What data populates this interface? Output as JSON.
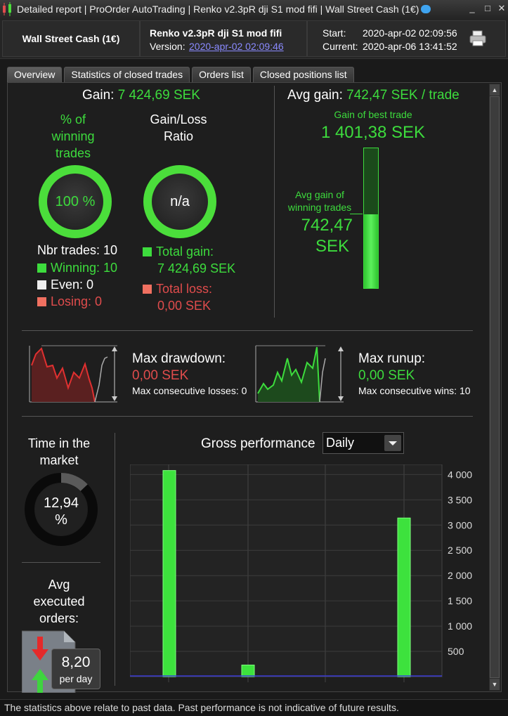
{
  "titlebar": {
    "title": "Detailed report | ProOrder AutoTrading | Renko v2.3pR dji S1 mod fifi | Wall Street Cash (1€)",
    "minimize": "_",
    "maximize": "□",
    "close": "✕"
  },
  "header": {
    "instrument": "Wall Street Cash (1€)",
    "system_name": "Renko v2.3pR dji S1 mod fifi",
    "version_label": "Version:",
    "version_link": "2020-apr-02 02:09:46",
    "start_label": "Start:",
    "start_value": "2020-apr-02 02:09:56",
    "current_label": "Current:",
    "current_value": "2020-apr-06 13:41:52"
  },
  "tabs": [
    "Overview",
    "Statistics of closed trades",
    "Orders list",
    "Closed positions list"
  ],
  "overview": {
    "gain_label": "Gain:",
    "gain_value": "7 424,69 SEK",
    "winning_title_1": "% of",
    "winning_title_2": "winning",
    "winning_title_3": "trades",
    "winning_pct": "100 %",
    "ratio_title_1": "Gain/Loss",
    "ratio_title_2": "Ratio",
    "ratio_value": "n/a",
    "nbr_trades": "Nbr trades: 10",
    "winning": "Winning: 10",
    "even": "Even: 0",
    "losing": "Losing: 0",
    "total_gain_label": "Total gain:",
    "total_gain_value": "7 424,69 SEK",
    "total_loss_label": "Total loss:",
    "total_loss_value": "0,00 SEK",
    "avg_gain_label": "Avg gain:",
    "avg_gain_value": "742,47 SEK / trade",
    "best_trade_label": "Gain of best trade",
    "best_trade_value": "1 401,38 SEK",
    "avg_win_label_1": "Avg gain of",
    "avg_win_label_2": "winning trades",
    "avg_win_value_1": "742,47",
    "avg_win_value_2": "SEK",
    "avg_win_fraction": 0.53
  },
  "drawdown": {
    "dd_label": "Max drawdown:",
    "dd_value": "0,00 SEK",
    "dd_sub": "Max consecutive losses: 0",
    "ru_label": "Max runup:",
    "ru_value": "0,00 SEK",
    "ru_sub": "Max consecutive wins: 10"
  },
  "market": {
    "time_label_1": "Time in the",
    "time_label_2": "market",
    "time_value_1": "12,94",
    "time_value_2": "%",
    "time_fraction": 0.1294,
    "orders_label_1": "Avg",
    "orders_label_2": "executed",
    "orders_label_3": "orders:",
    "orders_value": "8,20",
    "orders_unit": "per day"
  },
  "performance": {
    "title": "Gross performance",
    "period": "Daily"
  },
  "chart_data": {
    "type": "bar",
    "title": "Gross performance",
    "values": [
      4080,
      230,
      3140
    ],
    "ylim": [
      0,
      4200
    ],
    "yticks": [
      "4 000",
      "3 500",
      "3 000",
      "2 500",
      "2 000",
      "1 500",
      "1 000",
      "500"
    ],
    "ytick_values": [
      4000,
      3500,
      3000,
      2500,
      2000,
      1500,
      1000,
      500
    ],
    "grid": true
  },
  "footer": {
    "disclaimer": "The statistics above relate to past data. Past performance is not indicative of future results."
  },
  "colors": {
    "green": "#3ddc3d",
    "red": "#e04c4c",
    "link": "#8a8aff"
  }
}
